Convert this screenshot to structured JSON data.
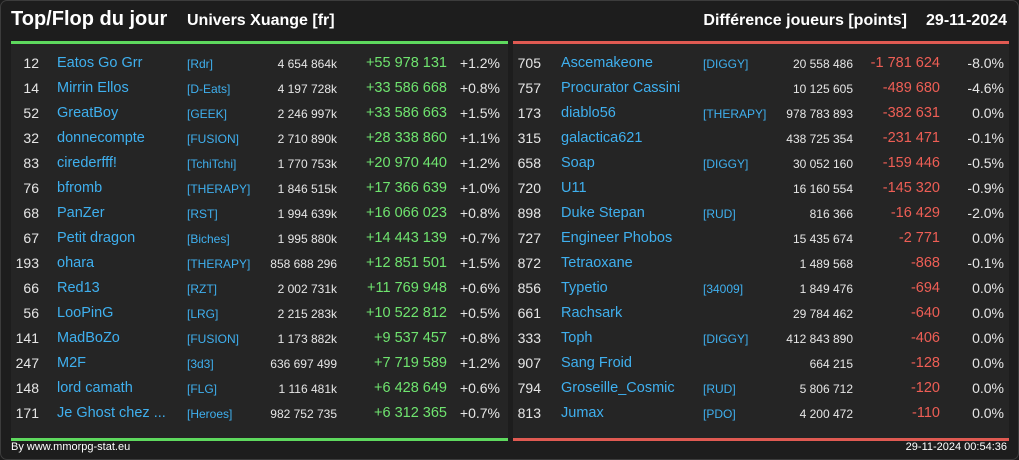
{
  "header": {
    "title": "Top/Flop du jour",
    "universe": "Univers Xuange [fr]",
    "metric": "Différence joueurs [points]",
    "date": "29-11-2024"
  },
  "colors": {
    "top_accent": "#5ed95e",
    "flop_accent": "#e05a52",
    "link": "#3fb0ef"
  },
  "top": [
    {
      "rank": "12",
      "name": "Eatos Go Grr",
      "alliance": "[Rdr]",
      "score": "4 654 864k",
      "diff": "+55 978 131",
      "pct": "+1.2%"
    },
    {
      "rank": "14",
      "name": "Mirrin Ellos",
      "alliance": "[D-Eats]",
      "score": "4 197 728k",
      "diff": "+33 586 668",
      "pct": "+0.8%"
    },
    {
      "rank": "52",
      "name": "GreatBoy",
      "alliance": "[GEEK]",
      "score": "2 246 997k",
      "diff": "+33 586 663",
      "pct": "+1.5%"
    },
    {
      "rank": "32",
      "name": "donnecompte",
      "alliance": "[FUSION]",
      "score": "2 710 890k",
      "diff": "+28 338 860",
      "pct": "+1.1%"
    },
    {
      "rank": "83",
      "name": "cirederfff!",
      "alliance": "[TchiTchi]",
      "score": "1 770 753k",
      "diff": "+20 970 440",
      "pct": "+1.2%"
    },
    {
      "rank": "76",
      "name": "bfromb",
      "alliance": "[THERAPY]",
      "score": "1 846 515k",
      "diff": "+17 366 639",
      "pct": "+1.0%"
    },
    {
      "rank": "68",
      "name": "PanZer",
      "alliance": "[RST]",
      "score": "1 994 639k",
      "diff": "+16 066 023",
      "pct": "+0.8%"
    },
    {
      "rank": "67",
      "name": "Petit dragon",
      "alliance": "[Biches]",
      "score": "1 995 880k",
      "diff": "+14 443 139",
      "pct": "+0.7%"
    },
    {
      "rank": "193",
      "name": "ohara",
      "alliance": "[THERAPY]",
      "score": "858 688 296",
      "diff": "+12 851 501",
      "pct": "+1.5%"
    },
    {
      "rank": "66",
      "name": "Red13",
      "alliance": "[RZT]",
      "score": "2 002 731k",
      "diff": "+11 769 948",
      "pct": "+0.6%"
    },
    {
      "rank": "56",
      "name": "LooPinG",
      "alliance": "[LRG]",
      "score": "2 215 283k",
      "diff": "+10 522 812",
      "pct": "+0.5%"
    },
    {
      "rank": "141",
      "name": "MadBoZo",
      "alliance": "[FUSION]",
      "score": "1 173 882k",
      "diff": "+9 537 457",
      "pct": "+0.8%"
    },
    {
      "rank": "247",
      "name": "M2F",
      "alliance": "[3d3]",
      "score": "636 697 499",
      "diff": "+7 719 589",
      "pct": "+1.2%"
    },
    {
      "rank": "148",
      "name": "lord camath",
      "alliance": "[FLG]",
      "score": "1 116 481k",
      "diff": "+6 428 649",
      "pct": "+0.6%"
    },
    {
      "rank": "171",
      "name": "Je Ghost chez ...",
      "alliance": "[Heroes]",
      "score": "982 752 735",
      "diff": "+6 312 365",
      "pct": "+0.7%"
    }
  ],
  "flop": [
    {
      "rank": "705",
      "name": "Ascemakeone",
      "alliance": "[DIGGY]",
      "score": "20 558 486",
      "diff": "-1 781 624",
      "pct": "-8.0%"
    },
    {
      "rank": "757",
      "name": "Procurator Cassini",
      "alliance": "",
      "score": "10 125 605",
      "diff": "-489 680",
      "pct": "-4.6%"
    },
    {
      "rank": "173",
      "name": "diablo56",
      "alliance": "[THERAPY]",
      "score": "978 783 893",
      "diff": "-382 631",
      "pct": "0.0%"
    },
    {
      "rank": "315",
      "name": "galactica621",
      "alliance": "",
      "score": "438 725 354",
      "diff": "-231 471",
      "pct": "-0.1%"
    },
    {
      "rank": "658",
      "name": "Soap",
      "alliance": "[DIGGY]",
      "score": "30 052 160",
      "diff": "-159 446",
      "pct": "-0.5%"
    },
    {
      "rank": "720",
      "name": "U11",
      "alliance": "",
      "score": "16 160 554",
      "diff": "-145 320",
      "pct": "-0.9%"
    },
    {
      "rank": "898",
      "name": "Duke Stepan",
      "alliance": "[RUD]",
      "score": "816 366",
      "diff": "-16 429",
      "pct": "-2.0%"
    },
    {
      "rank": "727",
      "name": "Engineer Phobos",
      "alliance": "",
      "score": "15 435 674",
      "diff": "-2 771",
      "pct": "0.0%"
    },
    {
      "rank": "872",
      "name": "Tetraoxane",
      "alliance": "",
      "score": "1 489 568",
      "diff": "-868",
      "pct": "-0.1%"
    },
    {
      "rank": "856",
      "name": "Typetio",
      "alliance": "[34009]",
      "score": "1 849 476",
      "diff": "-694",
      "pct": "0.0%"
    },
    {
      "rank": "661",
      "name": "Rachsark",
      "alliance": "",
      "score": "29 784 462",
      "diff": "-640",
      "pct": "0.0%"
    },
    {
      "rank": "333",
      "name": "Toph",
      "alliance": "[DIGGY]",
      "score": "412 843 890",
      "diff": "-406",
      "pct": "0.0%"
    },
    {
      "rank": "907",
      "name": "Sang Froid",
      "alliance": "",
      "score": "664 215",
      "diff": "-128",
      "pct": "0.0%"
    },
    {
      "rank": "794",
      "name": "Groseille_Cosmic",
      "alliance": "[RUD]",
      "score": "5 806 712",
      "diff": "-120",
      "pct": "0.0%"
    },
    {
      "rank": "813",
      "name": "Jumax",
      "alliance": "[PDO]",
      "score": "4 200 472",
      "diff": "-110",
      "pct": "0.0%"
    }
  ],
  "footer": {
    "credit": "By www.mmorpg-stat.eu",
    "timestamp": "29-11-2024 00:54:36"
  }
}
